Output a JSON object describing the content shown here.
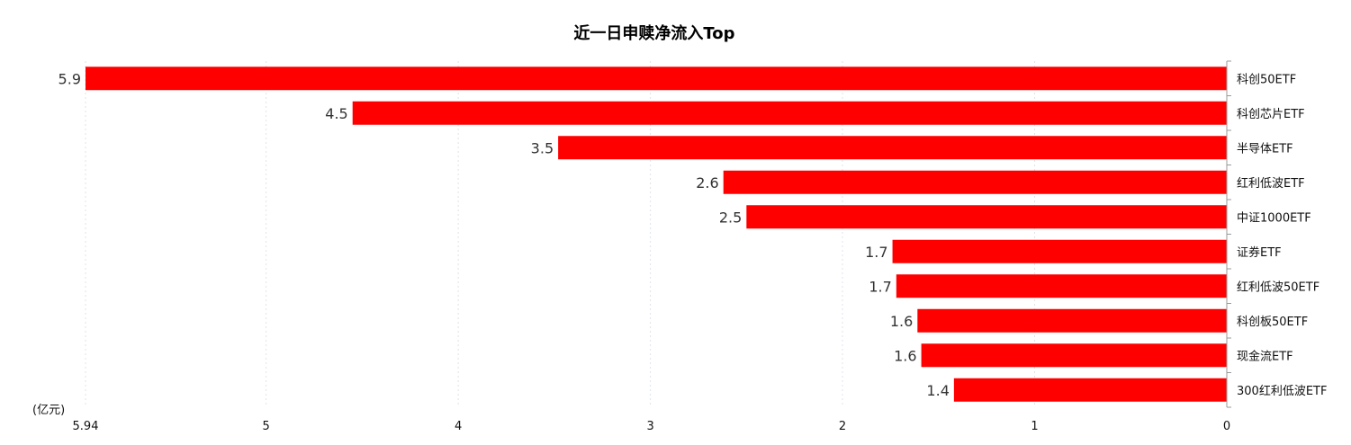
{
  "chart_data": {
    "type": "bar",
    "orientation": "horizontal",
    "x_direction": "reversed",
    "title": "近一日申赎净流入Top",
    "unit_label": "(亿元)",
    "categories": [
      "科创50ETF",
      "科创芯片ETF",
      "半导体ETF",
      "红利低波ETF",
      "中证1000ETF",
      "证券ETF",
      "红利低波50ETF",
      "科创板50ETF",
      "现金流ETF",
      "300红利低波ETF"
    ],
    "values": [
      5.94,
      4.55,
      3.48,
      2.62,
      2.5,
      1.74,
      1.72,
      1.61,
      1.59,
      1.42
    ],
    "value_labels": [
      "5.9",
      "4.5",
      "3.5",
      "2.6",
      "2.5",
      "1.7",
      "1.7",
      "1.6",
      "1.6",
      "1.4"
    ],
    "xlim": [
      0,
      5.94
    ],
    "x_ticks": [
      0,
      1,
      2,
      3,
      4,
      5,
      5.94
    ],
    "x_tick_labels": [
      "0",
      "1",
      "2",
      "3",
      "4",
      "5",
      "5.94"
    ],
    "grid": true,
    "bar_color": "#ff0000",
    "category_axis_position": "right"
  }
}
